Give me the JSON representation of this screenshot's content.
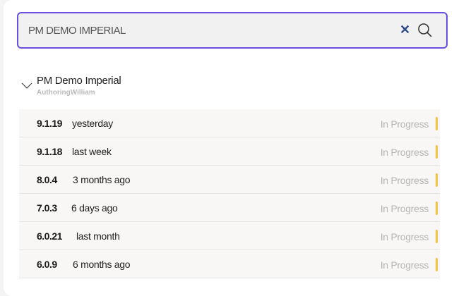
{
  "search": {
    "value": "PM DEMO IMPERIAL",
    "clear_icon": "close-icon",
    "search_icon": "search-icon",
    "border_color": "#6b4fe0"
  },
  "group": {
    "title": "PM Demo Imperial",
    "subtitle": "AuthoringWilliam",
    "expanded": true
  },
  "status_color": "#f6c142",
  "versions": [
    {
      "version": "9.1.19",
      "when": "yesterday",
      "status": "In Progress"
    },
    {
      "version": "9.1.18",
      "when": "last week",
      "status": "In Progress"
    },
    {
      "version": "8.0.4",
      "when": "3 months ago",
      "status": "In Progress"
    },
    {
      "version": "7.0.3",
      "when": "6 days ago",
      "status": "In Progress"
    },
    {
      "version": "6.0.21",
      "when": "last month",
      "status": "In Progress"
    },
    {
      "version": "6.0.9",
      "when": "6 months ago",
      "status": "In Progress"
    }
  ]
}
